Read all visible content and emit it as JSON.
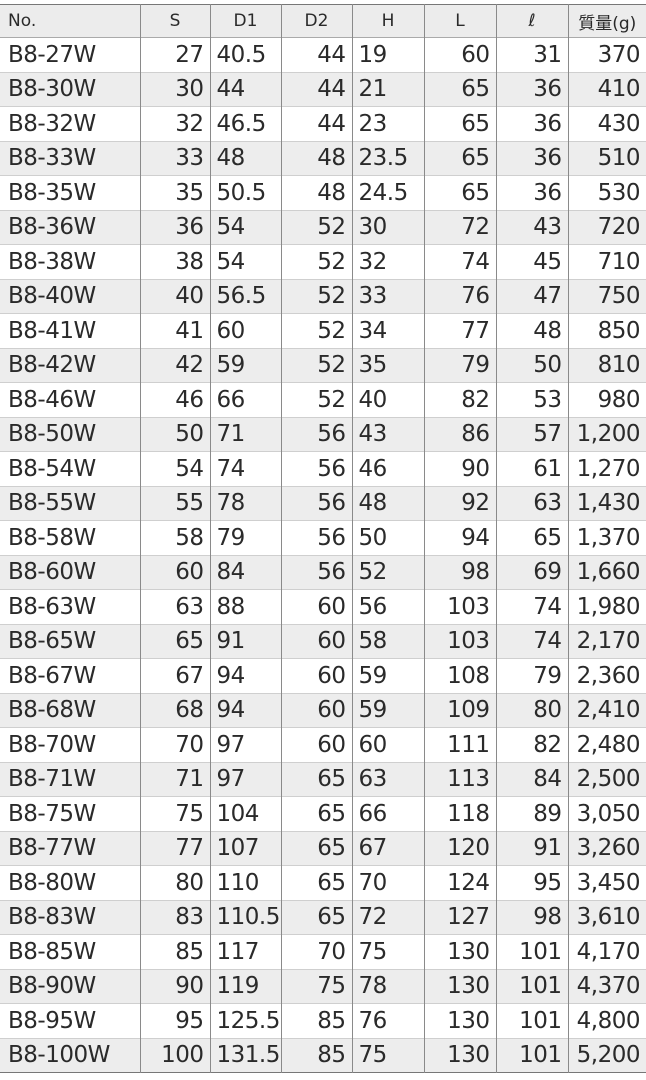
{
  "headers": [
    "No.",
    "S",
    "D1",
    "D2",
    "H",
    "L",
    "ℓ",
    "質量(g)"
  ],
  "rows": [
    [
      "B8-27W",
      "27",
      "40.5",
      "44",
      "19",
      "60",
      "31",
      "370"
    ],
    [
      "B8-30W",
      "30",
      "44",
      "44",
      "21",
      "65",
      "36",
      "410"
    ],
    [
      "B8-32W",
      "32",
      "46.5",
      "44",
      "23",
      "65",
      "36",
      "430"
    ],
    [
      "B8-33W",
      "33",
      "48",
      "48",
      "23.5",
      "65",
      "36",
      "510"
    ],
    [
      "B8-35W",
      "35",
      "50.5",
      "48",
      "24.5",
      "65",
      "36",
      "530"
    ],
    [
      "B8-36W",
      "36",
      "54",
      "52",
      "30",
      "72",
      "43",
      "720"
    ],
    [
      "B8-38W",
      "38",
      "54",
      "52",
      "32",
      "74",
      "45",
      "710"
    ],
    [
      "B8-40W",
      "40",
      "56.5",
      "52",
      "33",
      "76",
      "47",
      "750"
    ],
    [
      "B8-41W",
      "41",
      "60",
      "52",
      "34",
      "77",
      "48",
      "850"
    ],
    [
      "B8-42W",
      "42",
      "59",
      "52",
      "35",
      "79",
      "50",
      "810"
    ],
    [
      "B8-46W",
      "46",
      "66",
      "52",
      "40",
      "82",
      "53",
      "980"
    ],
    [
      "B8-50W",
      "50",
      "71",
      "56",
      "43",
      "86",
      "57",
      "1,200"
    ],
    [
      "B8-54W",
      "54",
      "74",
      "56",
      "46",
      "90",
      "61",
      "1,270"
    ],
    [
      "B8-55W",
      "55",
      "78",
      "56",
      "48",
      "92",
      "63",
      "1,430"
    ],
    [
      "B8-58W",
      "58",
      "79",
      "56",
      "50",
      "94",
      "65",
      "1,370"
    ],
    [
      "B8-60W",
      "60",
      "84",
      "56",
      "52",
      "98",
      "69",
      "1,660"
    ],
    [
      "B8-63W",
      "63",
      "88",
      "60",
      "56",
      "103",
      "74",
      "1,980"
    ],
    [
      "B8-65W",
      "65",
      "91",
      "60",
      "58",
      "103",
      "74",
      "2,170"
    ],
    [
      "B8-67W",
      "67",
      "94",
      "60",
      "59",
      "108",
      "79",
      "2,360"
    ],
    [
      "B8-68W",
      "68",
      "94",
      "60",
      "59",
      "109",
      "80",
      "2,410"
    ],
    [
      "B8-70W",
      "70",
      "97",
      "60",
      "60",
      "111",
      "82",
      "2,480"
    ],
    [
      "B8-71W",
      "71",
      "97",
      "65",
      "63",
      "113",
      "84",
      "2,500"
    ],
    [
      "B8-75W",
      "75",
      "104",
      "65",
      "66",
      "118",
      "89",
      "3,050"
    ],
    [
      "B8-77W",
      "77",
      "107",
      "65",
      "67",
      "120",
      "91",
      "3,260"
    ],
    [
      "B8-80W",
      "80",
      "110",
      "65",
      "70",
      "124",
      "95",
      "3,450"
    ],
    [
      "B8-83W",
      "83",
      "110.5",
      "65",
      "72",
      "127",
      "98",
      "3,610"
    ],
    [
      "B8-85W",
      "85",
      "117",
      "70",
      "75",
      "130",
      "101",
      "4,170"
    ],
    [
      "B8-90W",
      "90",
      "119",
      "75",
      "78",
      "130",
      "101",
      "4,370"
    ],
    [
      "B8-95W",
      "95",
      "125.5",
      "85",
      "76",
      "130",
      "101",
      "4,800"
    ],
    [
      "B8-100W",
      "100",
      "131.5",
      "85",
      "75",
      "130",
      "101",
      "5,200"
    ]
  ]
}
